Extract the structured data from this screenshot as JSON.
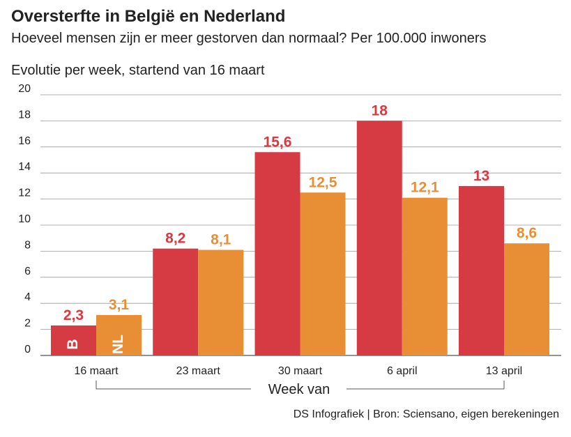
{
  "header": {
    "title": "Oversterfte in België en Nederland",
    "subtitle": "Hoeveel mensen zijn er meer gestorven dan normaal? Per 100.000 inwoners",
    "caption": "Evolutie per week, startend van 16 maart"
  },
  "footer": {
    "source": "DS Infografiek | Bron: Sciensano, eigen berekeningen"
  },
  "chart_data": {
    "type": "bar",
    "title": "Oversterfte in België en Nederland",
    "xlabel": "Week van",
    "ylabel": "",
    "ylim": [
      0,
      20
    ],
    "yticks": [
      0,
      2,
      4,
      6,
      8,
      10,
      12,
      14,
      16,
      18,
      20
    ],
    "grid": true,
    "categories": [
      "16 maart",
      "23 maart",
      "30 maart",
      "6 april",
      "13 april"
    ],
    "series": [
      {
        "name": "B",
        "color": "#d63a42",
        "values": [
          2.3,
          8.2,
          15.6,
          18,
          13
        ],
        "labels": [
          "2,3",
          "8,2",
          "15,6",
          "18",
          "13"
        ]
      },
      {
        "name": "NL",
        "color": "#e88f36",
        "values": [
          3.1,
          8.1,
          12.5,
          12.1,
          8.6
        ],
        "labels": [
          "3,1",
          "8,1",
          "12,5",
          "12,1",
          "8,6"
        ]
      }
    ]
  }
}
